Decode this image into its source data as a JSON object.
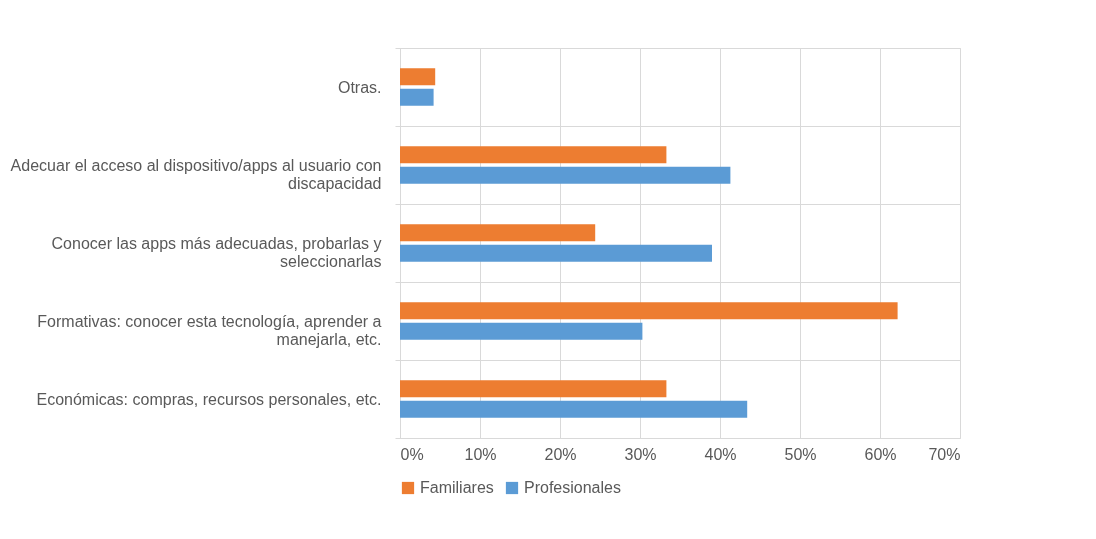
{
  "chart_data": {
    "type": "bar",
    "orientation": "horizontal",
    "categories": [
      "Otras.",
      "Adecuar el acceso al dispositivo/apps al usuario con discapacidad",
      "Conocer las apps más adecuadas, probarlas y seleccionarlas",
      "Formativas: conocer esta tecnología, aprender a manejarla, etc.",
      "Económicas: compras, recursos personales, etc."
    ],
    "series": [
      {
        "name": "Familiares",
        "color": "#ed7d31",
        "values": [
          4.4,
          33.3,
          24.4,
          62.2,
          33.3
        ]
      },
      {
        "name": "Profesionales",
        "color": "#5b9bd5",
        "values": [
          4.2,
          41.3,
          39.0,
          30.3,
          43.4
        ]
      }
    ],
    "xlim": [
      0,
      70
    ],
    "xticks": [
      {
        "value": 0,
        "label": "0%"
      },
      {
        "value": 10,
        "label": "10%"
      },
      {
        "value": 20,
        "label": "20%"
      },
      {
        "value": 30,
        "label": "30%"
      },
      {
        "value": 40,
        "label": "40%"
      },
      {
        "value": 50,
        "label": "50%"
      },
      {
        "value": 60,
        "label": "60%"
      },
      {
        "value": 70,
        "label": "70%"
      }
    ],
    "grid": true,
    "legend": "bottom"
  }
}
